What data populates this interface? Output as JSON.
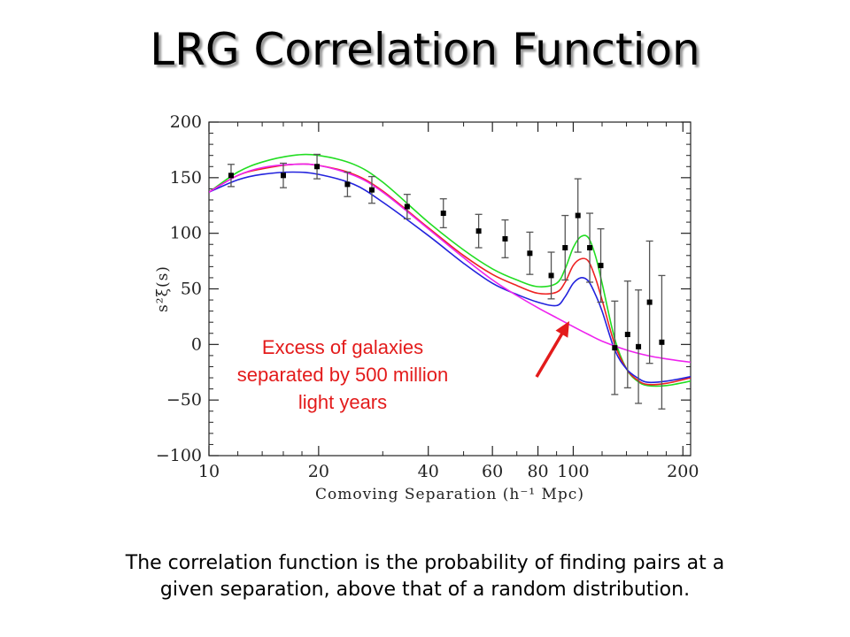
{
  "title": "LRG Correlation Function",
  "caption": {
    "line1": "The correlation function is the probability of finding pairs at a",
    "line2": "given separation, above that of a random distribution."
  },
  "chart_data": {
    "type": "line",
    "xlabel": "Comoving Separation (h⁻¹ Mpc)",
    "ylabel": "s²ξ(s)",
    "xscale": "log",
    "xlim": [
      10,
      210
    ],
    "ylim": [
      -100,
      200
    ],
    "xticks": [
      10,
      20,
      40,
      60,
      80,
      100,
      200
    ],
    "yticks": [
      200,
      150,
      100,
      50,
      0,
      -50,
      -100
    ],
    "ytick_labels": [
      "200",
      "150",
      "100",
      "50",
      "0",
      "−50",
      "−100"
    ],
    "series": [
      {
        "color": "#22dd22",
        "x": [
          10,
          12,
          14,
          17,
          20,
          25,
          30,
          40,
          50,
          60,
          70,
          80,
          90,
          95,
          100,
          105,
          110,
          115,
          120,
          130,
          140,
          150,
          160,
          180,
          210
        ],
        "y": [
          137,
          155,
          164,
          170,
          170,
          162,
          146,
          110,
          85,
          68,
          58,
          52,
          55,
          68,
          87,
          97,
          96,
          80,
          55,
          5,
          -22,
          -33,
          -37,
          -37,
          -33
        ]
      },
      {
        "color": "#ee2222",
        "x": [
          10,
          12,
          14,
          17,
          20,
          25,
          30,
          40,
          50,
          60,
          70,
          80,
          90,
          95,
          100,
          105,
          110,
          115,
          120,
          130,
          140,
          150,
          160,
          180,
          210
        ],
        "y": [
          137,
          152,
          158,
          162,
          161,
          153,
          138,
          105,
          80,
          63,
          53,
          46,
          47,
          56,
          71,
          77,
          75,
          60,
          40,
          0,
          -22,
          -32,
          -36,
          -35,
          -30
        ]
      },
      {
        "color": "#2222dd",
        "x": [
          10,
          12,
          14,
          17,
          20,
          25,
          30,
          40,
          50,
          60,
          70,
          80,
          90,
          95,
          100,
          105,
          110,
          115,
          120,
          130,
          140,
          150,
          160,
          180,
          210
        ],
        "y": [
          137,
          148,
          153,
          155,
          153,
          144,
          128,
          98,
          73,
          55,
          45,
          38,
          35,
          43,
          55,
          60,
          57,
          45,
          30,
          -5,
          -22,
          -30,
          -34,
          -33,
          -29
        ]
      },
      {
        "color": "#ee22ee",
        "x": [
          10,
          12,
          14,
          17,
          20,
          25,
          30,
          40,
          50,
          60,
          70,
          80,
          90,
          100,
          110,
          120,
          140,
          160,
          180,
          210
        ],
        "y": [
          137,
          152,
          159,
          162,
          161,
          152,
          137,
          104,
          78,
          58,
          44,
          33,
          24,
          16,
          9,
          3,
          -5,
          -10,
          -13,
          -16
        ]
      }
    ],
    "points": {
      "color": "#000000",
      "x": [
        11.5,
        16,
        19.8,
        24,
        28,
        35,
        44,
        55,
        65,
        76,
        87,
        95,
        103,
        111,
        119,
        130,
        141,
        151,
        162,
        175
      ],
      "y": [
        152,
        152,
        160,
        144,
        139,
        124,
        118,
        102,
        95,
        82,
        62,
        87,
        116,
        87,
        71,
        -3,
        9,
        -2,
        38,
        2
      ],
      "err": [
        10,
        11,
        11,
        11,
        12,
        11,
        13,
        15,
        17,
        19,
        21,
        29,
        33,
        31,
        33,
        42,
        48,
        51,
        55,
        60
      ]
    },
    "annotation": {
      "lines": [
        "Excess of galaxies",
        "separated by 500 million",
        "light years"
      ],
      "color": "#e31b1b"
    }
  }
}
